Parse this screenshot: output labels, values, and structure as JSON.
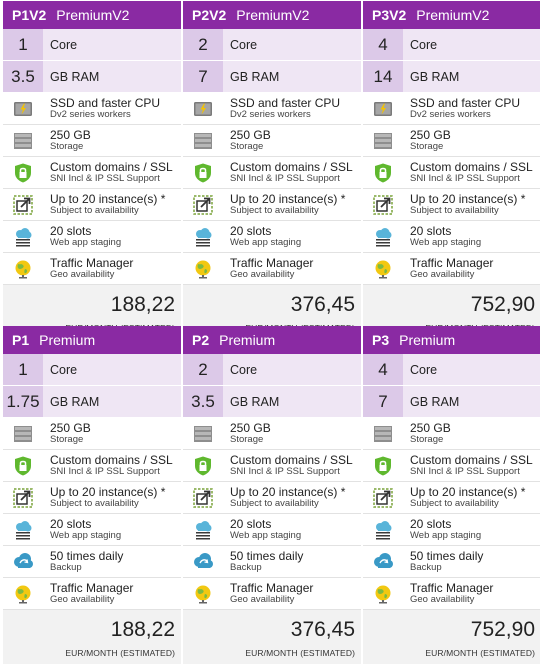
{
  "cards": [
    {
      "code": "P1V2",
      "tier": "PremiumV2",
      "core_value": "1",
      "core_label": "Core",
      "ram_value": "3.5",
      "ram_label": "GB RAM",
      "features": [
        {
          "icon": "ssd-icon",
          "title": "SSD and faster CPU",
          "sub": "Dv2 series workers"
        },
        {
          "icon": "storage-icon",
          "title": "250 GB",
          "sub": "Storage"
        },
        {
          "icon": "lock-icon",
          "title": "Custom domains / SSL",
          "sub": "SNI Incl & IP SSL Support"
        },
        {
          "icon": "scale-icon",
          "title": "Up to 20 instance(s) *",
          "sub": "Subject to availability"
        },
        {
          "icon": "cloud-slots-icon",
          "title": "20 slots",
          "sub": "Web app staging"
        },
        {
          "icon": "globe-icon",
          "title": "Traffic Manager",
          "sub": "Geo availability"
        }
      ],
      "price": "188,22",
      "price_unit": "EUR/MONTH (ESTIMATED)"
    },
    {
      "code": "P2V2",
      "tier": "PremiumV2",
      "core_value": "2",
      "core_label": "Core",
      "ram_value": "7",
      "ram_label": "GB RAM",
      "features": [
        {
          "icon": "ssd-icon",
          "title": "SSD and faster CPU",
          "sub": "Dv2 series workers"
        },
        {
          "icon": "storage-icon",
          "title": "250 GB",
          "sub": "Storage"
        },
        {
          "icon": "lock-icon",
          "title": "Custom domains / SSL",
          "sub": "SNI Incl & IP SSL Support"
        },
        {
          "icon": "scale-icon",
          "title": "Up to 20 instance(s) *",
          "sub": "Subject to availability"
        },
        {
          "icon": "cloud-slots-icon",
          "title": "20 slots",
          "sub": "Web app staging"
        },
        {
          "icon": "globe-icon",
          "title": "Traffic Manager",
          "sub": "Geo availability"
        }
      ],
      "price": "376,45",
      "price_unit": "EUR/MONTH (ESTIMATED)"
    },
    {
      "code": "P3V2",
      "tier": "PremiumV2",
      "core_value": "4",
      "core_label": "Core",
      "ram_value": "14",
      "ram_label": "GB RAM",
      "features": [
        {
          "icon": "ssd-icon",
          "title": "SSD and faster CPU",
          "sub": "Dv2 series workers"
        },
        {
          "icon": "storage-icon",
          "title": "250 GB",
          "sub": "Storage"
        },
        {
          "icon": "lock-icon",
          "title": "Custom domains / SSL",
          "sub": "SNI Incl & IP SSL Support"
        },
        {
          "icon": "scale-icon",
          "title": "Up to 20 instance(s) *",
          "sub": "Subject to availability"
        },
        {
          "icon": "cloud-slots-icon",
          "title": "20 slots",
          "sub": "Web app staging"
        },
        {
          "icon": "globe-icon",
          "title": "Traffic Manager",
          "sub": "Geo availability"
        }
      ],
      "price": "752,90",
      "price_unit": "EUR/MONTH (ESTIMATED)"
    },
    {
      "code": "P1",
      "tier": "Premium",
      "core_value": "1",
      "core_label": "Core",
      "ram_value": "1.75",
      "ram_label": "GB RAM",
      "features": [
        {
          "icon": "storage-icon",
          "title": "250 GB",
          "sub": "Storage"
        },
        {
          "icon": "lock-icon",
          "title": "Custom domains / SSL",
          "sub": "SNI Incl & IP SSL Support"
        },
        {
          "icon": "scale-icon",
          "title": "Up to 20 instance(s) *",
          "sub": "Subject to availability"
        },
        {
          "icon": "cloud-slots-icon",
          "title": "20 slots",
          "sub": "Web app staging"
        },
        {
          "icon": "backup-icon",
          "title": "50 times daily",
          "sub": "Backup"
        },
        {
          "icon": "globe-icon",
          "title": "Traffic Manager",
          "sub": "Geo availability"
        }
      ],
      "price": "188,22",
      "price_unit": "EUR/MONTH (ESTIMATED)"
    },
    {
      "code": "P2",
      "tier": "Premium",
      "core_value": "2",
      "core_label": "Core",
      "ram_value": "3.5",
      "ram_label": "GB RAM",
      "features": [
        {
          "icon": "storage-icon",
          "title": "250 GB",
          "sub": "Storage"
        },
        {
          "icon": "lock-icon",
          "title": "Custom domains / SSL",
          "sub": "SNI Incl & IP SSL Support"
        },
        {
          "icon": "scale-icon",
          "title": "Up to 20 instance(s) *",
          "sub": "Subject to availability"
        },
        {
          "icon": "cloud-slots-icon",
          "title": "20 slots",
          "sub": "Web app staging"
        },
        {
          "icon": "backup-icon",
          "title": "50 times daily",
          "sub": "Backup"
        },
        {
          "icon": "globe-icon",
          "title": "Traffic Manager",
          "sub": "Geo availability"
        }
      ],
      "price": "376,45",
      "price_unit": "EUR/MONTH (ESTIMATED)"
    },
    {
      "code": "P3",
      "tier": "Premium",
      "core_value": "4",
      "core_label": "Core",
      "ram_value": "7",
      "ram_label": "GB RAM",
      "features": [
        {
          "icon": "storage-icon",
          "title": "250 GB",
          "sub": "Storage"
        },
        {
          "icon": "lock-icon",
          "title": "Custom domains / SSL",
          "sub": "SNI Incl & IP SSL Support"
        },
        {
          "icon": "scale-icon",
          "title": "Up to 20 instance(s) *",
          "sub": "Subject to availability"
        },
        {
          "icon": "cloud-slots-icon",
          "title": "20 slots",
          "sub": "Web app staging"
        },
        {
          "icon": "backup-icon",
          "title": "50 times daily",
          "sub": "Backup"
        },
        {
          "icon": "globe-icon",
          "title": "Traffic Manager",
          "sub": "Geo availability"
        }
      ],
      "price": "752,90",
      "price_unit": "EUR/MONTH (ESTIMATED)"
    }
  ],
  "colors": {
    "header": "#8a2aa3",
    "spec_num_bg": "#dcc9e8",
    "spec_lbl_bg": "#efe6f4",
    "price_bg": "#f2f2f2"
  }
}
